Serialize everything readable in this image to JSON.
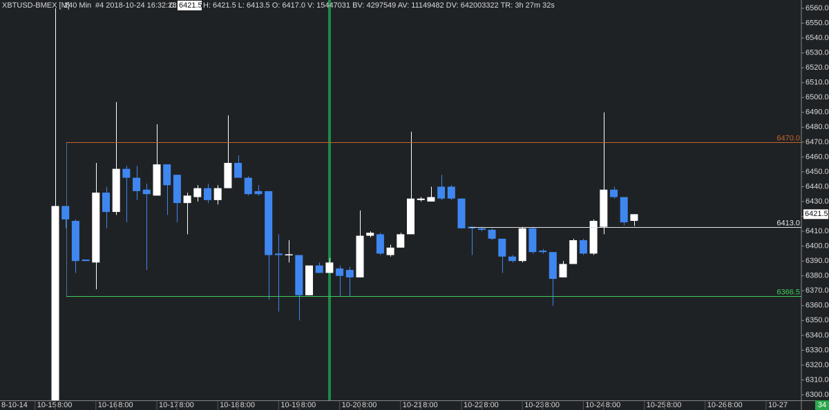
{
  "header": {
    "symbol": "XBTUSD-BMEX [M]",
    "interval": "240 Min",
    "bar_info": "#4 2018-10-24 16:32:28",
    "close_label": "C:",
    "close_value": "6421.5",
    "rest": "H: 6421.5 L: 6413.5 O: 6417.0 V: 15447031 BV: 4297549 AV: 11149482 DV: 642003322 TR: 3h 27m 32s"
  },
  "chart_data": {
    "type": "candlestick",
    "x_start_label": "8-10-14",
    "categories": [
      "10-15",
      null,
      "8:00",
      null,
      null,
      null,
      "10-16",
      null,
      "8:00",
      null,
      null,
      null,
      "10-17",
      null,
      "8:00",
      null,
      null,
      null,
      "10-18",
      null,
      "8:00",
      null,
      null,
      null,
      "10-19",
      null,
      "8:00",
      null,
      null,
      null,
      "10-20",
      null,
      "8:00",
      null,
      null,
      null,
      "10-21",
      null,
      "8:00",
      null,
      null,
      null,
      "10-22",
      null,
      "8:00",
      null,
      null,
      null,
      "10-23",
      null,
      "8:00",
      null,
      null,
      null,
      "10-24",
      null,
      "8:00",
      null,
      null,
      null,
      "10-25",
      null,
      "8:00",
      null,
      null,
      null,
      "10-26",
      null,
      "8:00",
      null,
      null,
      null,
      "10-27"
    ],
    "open": [
      null,
      null,
      6290,
      6427,
      6417,
      6391,
      6389,
      6436,
      6423,
      6452,
      6446,
      6438,
      6434,
      6455,
      6448,
      6429,
      6433,
      6439,
      6431,
      6439,
      6456,
      6446,
      6437,
      6437,
      6395,
      6394,
      6394,
      6367,
      6387,
      6382,
      6385,
      6384,
      6379,
      6407,
      6408,
      6394,
      6399,
      6408,
      6431,
      6430,
      6440,
      6440,
      6432,
      6413,
      6412,
      6411,
      6405,
      6393,
      6390,
      6412,
      6397,
      6396,
      6379,
      6388,
      6404,
      6395,
      6413,
      6438,
      6433,
      6417,
      null,
      null,
      null,
      null,
      null,
      null,
      null,
      null,
      null,
      null,
      null,
      null,
      null
    ],
    "high": [
      null,
      null,
      6560,
      6427,
      6418,
      6391,
      6456,
      6440,
      6497,
      6454,
      6454,
      6442,
      6482,
      6455,
      6448,
      6436,
      6441,
      6442,
      6441,
      6488,
      6461,
      6447,
      6441,
      6437,
      6408,
      6404,
      6394,
      6387,
      6389,
      6392,
      6387,
      6386,
      6424,
      6410,
      6409,
      6401,
      6409,
      6477,
      6433,
      6440,
      6448,
      6441,
      6432,
      6413,
      6413,
      6412,
      6405,
      6394,
      6413,
      6413,
      6398,
      6396,
      6390,
      6405,
      6405,
      6418,
      6490,
      6440,
      6433,
      6421.5,
      null,
      null,
      null,
      null,
      null,
      null,
      null,
      null,
      null,
      null,
      null,
      null,
      null
    ],
    "low": [
      null,
      null,
      6280,
      6412,
      6382,
      6390,
      6371,
      6412,
      6421,
      6416,
      6431,
      6384,
      6434,
      6421,
      6416,
      6408,
      6430,
      6429,
      6428,
      6439,
      6446,
      6434,
      6434,
      6364,
      6356,
      6389,
      6350,
      6367,
      6382,
      6382,
      6366,
      6366,
      6379,
      6406,
      6394,
      6393,
      6399,
      6408,
      6430,
      6430,
      6431,
      6431,
      6412,
      6394,
      6410,
      6404,
      6382,
      6389,
      6389,
      6395,
      6395,
      6360,
      6379,
      6388,
      6394,
      6394,
      6408,
      6432,
      6414,
      6413.5,
      null,
      null,
      null,
      null,
      null,
      null,
      null,
      null,
      null,
      null,
      null,
      null,
      null
    ],
    "close": [
      null,
      null,
      6427,
      6418,
      6390,
      6390,
      6436,
      6423,
      6452,
      6446,
      6437,
      6435,
      6455,
      6441,
      6429,
      6434,
      6439,
      6431,
      6439,
      6456,
      6446,
      6435,
      6435,
      6394,
      6394,
      6394.5,
      6367,
      6387,
      6382,
      6389,
      6380,
      6379,
      6407,
      6409,
      6395,
      6399,
      6408,
      6432,
      6432,
      6433,
      6432,
      6432,
      6412,
      6412,
      6411,
      6405,
      6393,
      6390,
      6412,
      6396,
      6396,
      6378,
      6388,
      6404,
      6395,
      6417,
      6438,
      6433,
      6416,
      6421.5,
      null,
      null,
      null,
      null,
      null,
      null,
      null,
      null,
      null,
      null,
      null,
      null,
      null
    ],
    "up_color": "#ffffff",
    "down_color": "#3f87f0",
    "ylim": [
      6300,
      6560
    ],
    "yticks": [
      {
        "value": 6300,
        "label": "6300.0"
      },
      {
        "value": 6310,
        "label": "6310.0"
      },
      {
        "value": 6320,
        "label": "6320.0"
      },
      {
        "value": 6330,
        "label": "6330.0"
      },
      {
        "value": 6340,
        "label": "6340.0"
      },
      {
        "value": 6350,
        "label": "6350.0"
      },
      {
        "value": 6360,
        "label": "6360.0"
      },
      {
        "value": 6370,
        "label": "6370.0"
      },
      {
        "value": 6380,
        "label": "6380.0"
      },
      {
        "value": 6390,
        "label": "6390.0"
      },
      {
        "value": 6400,
        "label": "6400.0"
      },
      {
        "value": 6410,
        "label": "6410.0"
      },
      {
        "value": 6420,
        "label": "6420.0"
      },
      {
        "value": 6430,
        "label": "6430.0"
      },
      {
        "value": 6440,
        "label": "6440.0"
      },
      {
        "value": 6450,
        "label": "6450.0"
      },
      {
        "value": 6460,
        "label": "6460.0"
      },
      {
        "value": 6470,
        "label": "6470.0"
      },
      {
        "value": 6480,
        "label": "6480.0"
      },
      {
        "value": 6490,
        "label": "6490.0"
      },
      {
        "value": 6500,
        "label": "6500.0"
      },
      {
        "value": 6510,
        "label": "6510.0"
      },
      {
        "value": 6520,
        "label": "6520.0"
      },
      {
        "value": 6530,
        "label": "6530.0"
      },
      {
        "value": 6540,
        "label": "6540.0"
      },
      {
        "value": 6550,
        "label": "6550.0"
      },
      {
        "value": 6560,
        "label": "6560.0"
      }
    ],
    "grid": false,
    "levels": [
      {
        "value": 6470,
        "label": "6470.0",
        "color": "#c8642d"
      },
      {
        "value": 6413,
        "label": "6413.0",
        "color": "#e6e6e6"
      },
      {
        "value": 6366.5,
        "label": "6366.5",
        "color": "#3ccf5a"
      }
    ],
    "last_price": {
      "value": 6421.5,
      "label": "6421.5"
    },
    "badge": "34"
  }
}
